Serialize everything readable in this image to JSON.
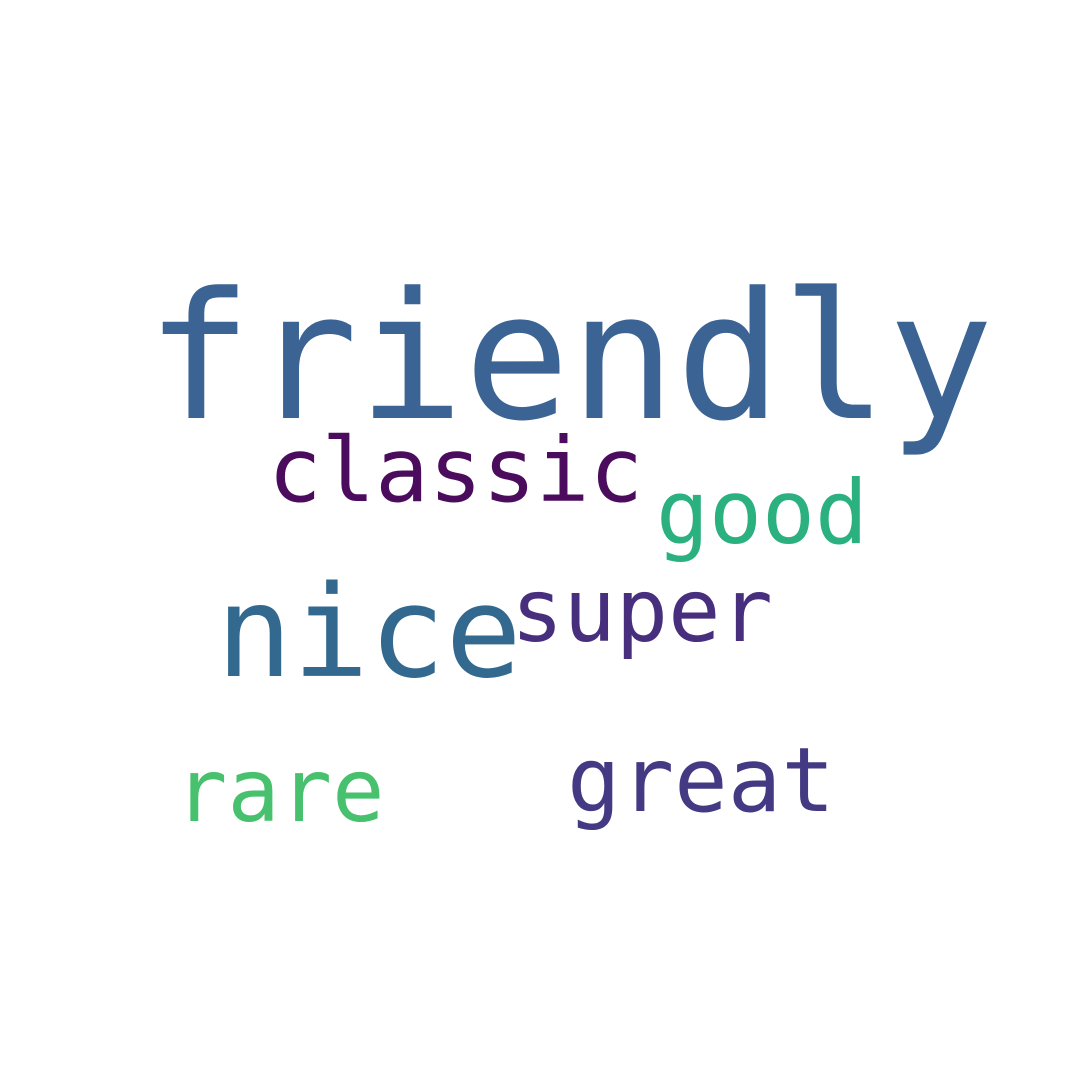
{
  "words": [
    {
      "text": "friendly",
      "color": "#3b6393"
    },
    {
      "text": "classic",
      "color": "#4b0c5e"
    },
    {
      "text": "good",
      "color": "#2bb07f"
    },
    {
      "text": "nice",
      "color": "#33698f"
    },
    {
      "text": "super",
      "color": "#472f7d"
    },
    {
      "text": "rare",
      "color": "#48c16e"
    },
    {
      "text": "great",
      "color": "#443a83"
    }
  ]
}
